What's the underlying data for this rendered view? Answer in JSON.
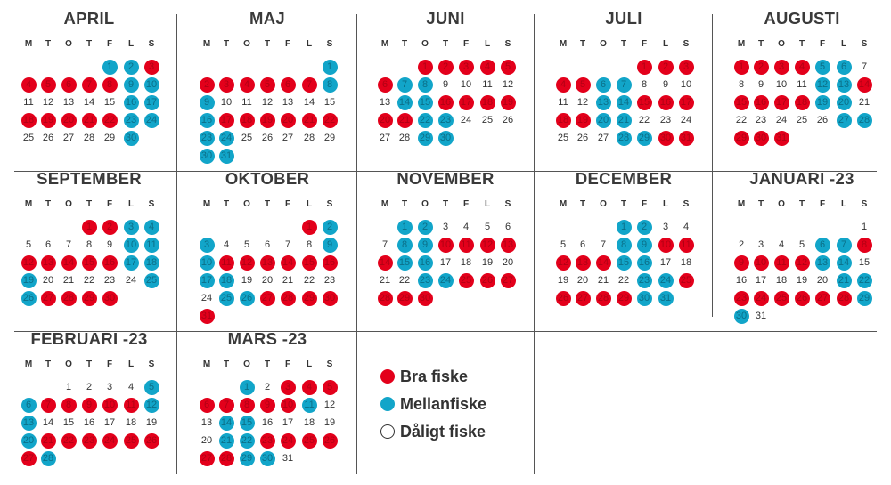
{
  "weekdays": [
    "M",
    "T",
    "O",
    "T",
    "F",
    "L",
    "S"
  ],
  "colors": {
    "good": "#e3001b",
    "mid": "#12a5c9",
    "poor": "#ffffff"
  },
  "legend": [
    {
      "key": "good",
      "label": "Bra fiske"
    },
    {
      "key": "mid",
      "label": "Mellanfiske"
    },
    {
      "key": "poor",
      "label": "Dåligt fiske"
    }
  ],
  "months": [
    {
      "name": "APRIL",
      "start": 4,
      "days": 30,
      "good": [
        3,
        4,
        5,
        6,
        7,
        8,
        18,
        19,
        20,
        21,
        22
      ],
      "mid": [
        1,
        2,
        9,
        10,
        16,
        17,
        23,
        24,
        30
      ]
    },
    {
      "name": "MAJ",
      "start": 6,
      "days": 31,
      "good": [
        2,
        3,
        4,
        5,
        6,
        7,
        17,
        18,
        19,
        20,
        21,
        22
      ],
      "mid": [
        1,
        8,
        9,
        16,
        23,
        24,
        30,
        31
      ]
    },
    {
      "name": "JUNI",
      "start": 2,
      "days": 30,
      "good": [
        1,
        2,
        3,
        4,
        5,
        6,
        16,
        17,
        18,
        19,
        20,
        21
      ],
      "mid": [
        7,
        8,
        14,
        15,
        22,
        23,
        29,
        30
      ]
    },
    {
      "name": "JULI",
      "start": 4,
      "days": 31,
      "good": [
        1,
        2,
        3,
        4,
        5,
        15,
        16,
        17,
        18,
        19,
        30,
        31
      ],
      "mid": [
        6,
        7,
        13,
        14,
        20,
        21,
        28,
        29
      ]
    },
    {
      "name": "AUGUSTI",
      "start": 0,
      "days": 31,
      "good": [
        1,
        2,
        3,
        4,
        14,
        15,
        16,
        17,
        18,
        29,
        30,
        31
      ],
      "mid": [
        5,
        6,
        12,
        13,
        19,
        20,
        27,
        28
      ]
    },
    {
      "name": "SEPTEMBER",
      "start": 3,
      "days": 30,
      "good": [
        1,
        2,
        12,
        13,
        14,
        15,
        16,
        27,
        28,
        29,
        30
      ],
      "mid": [
        3,
        4,
        10,
        11,
        17,
        18,
        19,
        25,
        26
      ]
    },
    {
      "name": "OKTOBER",
      "start": 5,
      "days": 31,
      "good": [
        1,
        11,
        12,
        13,
        14,
        15,
        16,
        27,
        28,
        29,
        30,
        31
      ],
      "mid": [
        2,
        3,
        9,
        10,
        17,
        18,
        25,
        26
      ]
    },
    {
      "name": "NOVEMBER",
      "start": 1,
      "days": 30,
      "good": [
        10,
        11,
        12,
        13,
        14,
        25,
        26,
        27,
        28,
        29,
        30
      ],
      "mid": [
        1,
        2,
        8,
        9,
        15,
        16,
        23,
        24
      ]
    },
    {
      "name": "DECEMBER",
      "start": 3,
      "days": 31,
      "good": [
        10,
        11,
        12,
        13,
        14,
        25,
        26,
        27,
        28,
        29
      ],
      "mid": [
        1,
        2,
        8,
        9,
        15,
        16,
        23,
        24,
        30,
        31
      ]
    },
    {
      "name": "JANUARI -23",
      "start": 6,
      "days": 31,
      "good": [
        8,
        9,
        10,
        11,
        12,
        23,
        24,
        25,
        26,
        27,
        28
      ],
      "mid": [
        6,
        7,
        13,
        14,
        21,
        22,
        29,
        30
      ]
    },
    {
      "name": "FEBRUARI -23",
      "start": 2,
      "days": 28,
      "good": [
        7,
        8,
        9,
        10,
        11,
        21,
        22,
        23,
        24,
        25,
        26,
        27
      ],
      "mid": [
        5,
        6,
        12,
        13,
        20,
        28
      ]
    },
    {
      "name": "MARS -23",
      "start": 2,
      "days": 31,
      "good": [
        3,
        4,
        5,
        6,
        7,
        8,
        9,
        10,
        23,
        24,
        25,
        26,
        27,
        28
      ],
      "mid": [
        1,
        11,
        14,
        15,
        21,
        22,
        29,
        30
      ]
    }
  ]
}
